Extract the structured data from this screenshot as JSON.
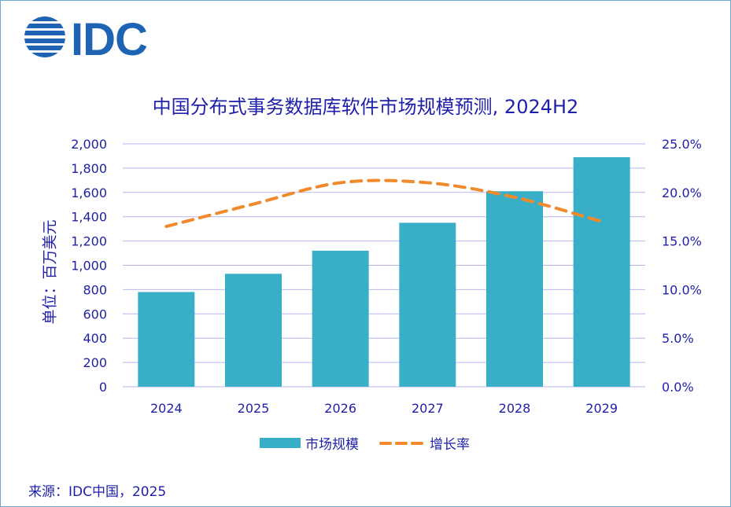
{
  "logo": {
    "text": "IDC",
    "color": "#1f64b4"
  },
  "colors": {
    "bar": "#38aec7",
    "line": "#f08a2c",
    "text": "#1f1fa8",
    "grid": "#b7b7ef"
  },
  "source": "来源：IDC中国，2025",
  "chart_data": {
    "type": "bar",
    "title": "中国分布式事务数据库软件市场规模预测, 2024H2",
    "ylabel": "单位：百万美元",
    "categories": [
      "2024",
      "2025",
      "2026",
      "2027",
      "2028",
      "2029"
    ],
    "series": [
      {
        "name": "市场规模",
        "type": "bar",
        "axis": "left",
        "values": [
          780,
          930,
          1120,
          1350,
          1610,
          1890
        ]
      },
      {
        "name": "增长率",
        "type": "line",
        "axis": "right",
        "style": "dashed",
        "values": [
          16.5,
          18.8,
          21.0,
          21.0,
          19.5,
          17.0
        ]
      }
    ],
    "ylim": [
      0,
      2000
    ],
    "y_ticks": [
      "0",
      "200",
      "400",
      "600",
      "800",
      "1,000",
      "1,200",
      "1,400",
      "1,600",
      "1,800",
      "2,000"
    ],
    "y2lim": [
      0,
      25
    ],
    "y2_ticks": [
      "0.0%",
      "5.0%",
      "10.0%",
      "15.0%",
      "20.0%",
      "25.0%"
    ],
    "grid": true,
    "legend_position": "bottom"
  }
}
